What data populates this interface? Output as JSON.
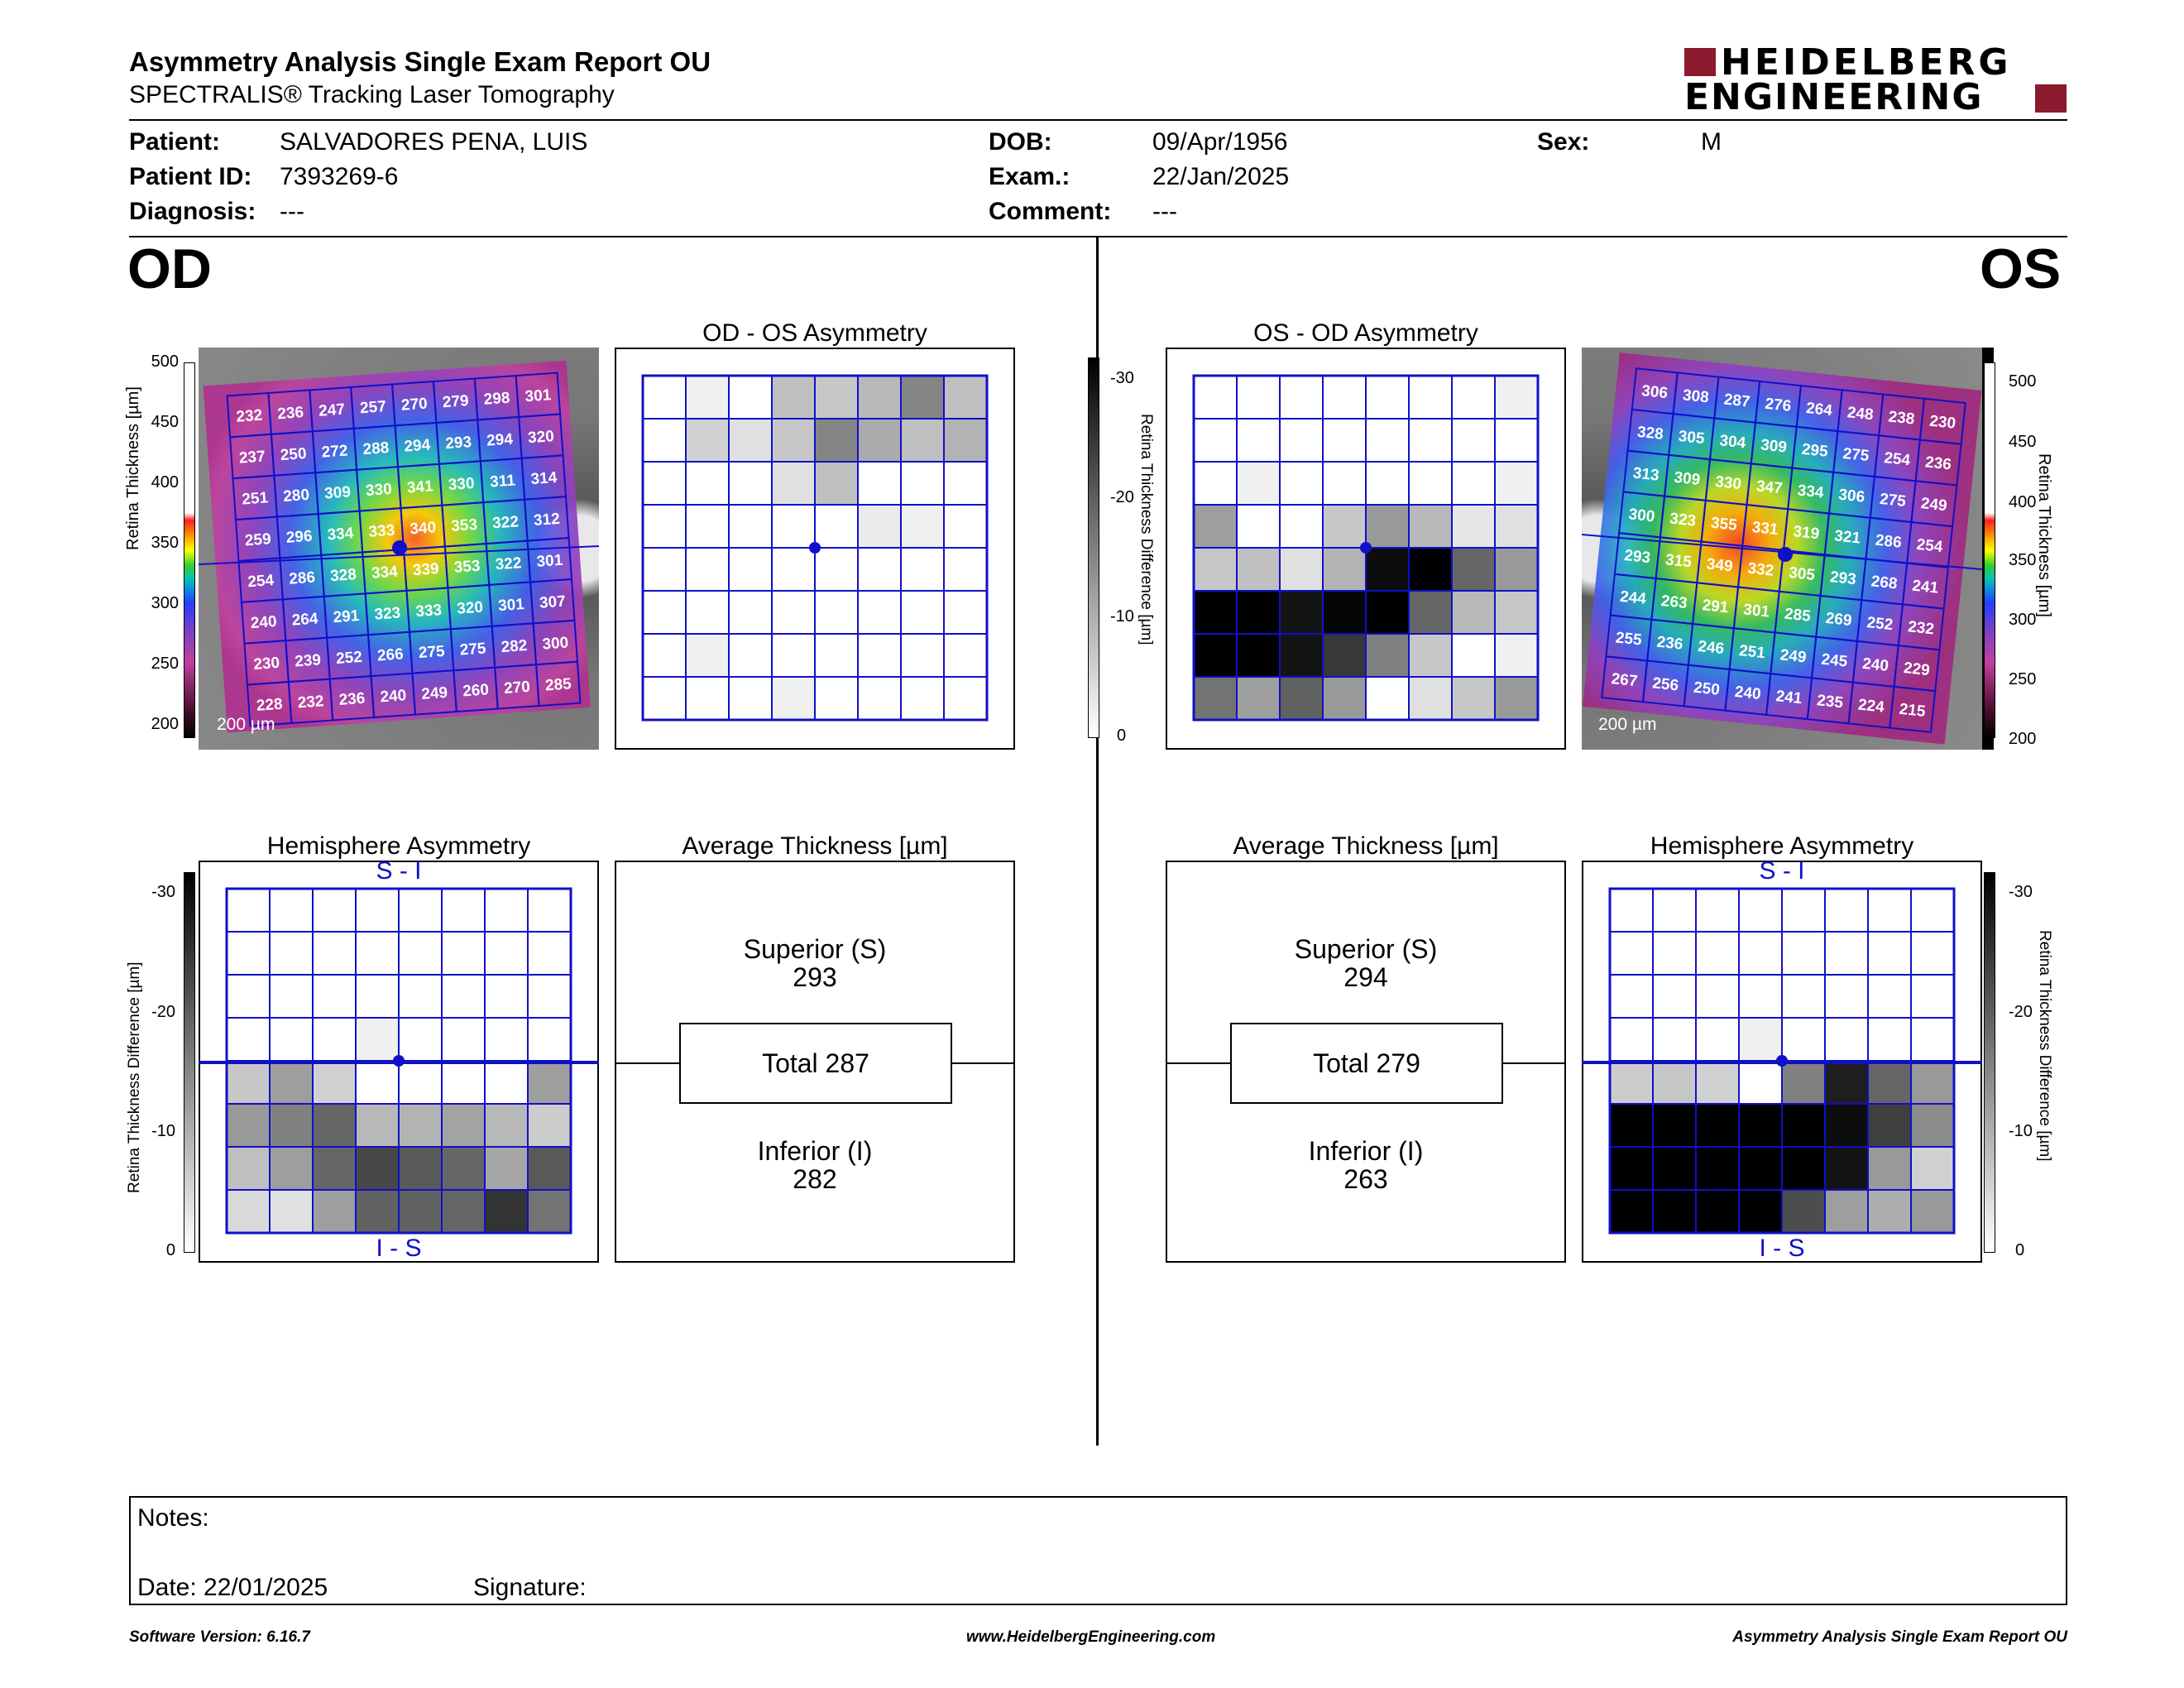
{
  "header": {
    "title": "Asymmetry Analysis Single Exam Report OU",
    "subtitle": "SPECTRALIS® Tracking Laser Tomography",
    "logo_line1": "HEIDELBERG",
    "logo_line2": "ENGINEERING"
  },
  "patient": {
    "patient_label": "Patient:",
    "patient_value": "SALVADORES PENA, LUIS",
    "id_label": "Patient ID:",
    "id_value": "7393269-6",
    "diagnosis_label": "Diagnosis:",
    "diagnosis_value": "---",
    "dob_label": "DOB:",
    "dob_value": "09/Apr/1956",
    "exam_label": "Exam.:",
    "exam_value": "22/Jan/2025",
    "comment_label": "Comment:",
    "comment_value": "---",
    "sex_label": "Sex:",
    "sex_value": "M"
  },
  "od": {
    "eye": "OD",
    "thickness_values": [
      [
        232,
        236,
        247,
        257,
        270,
        279,
        298,
        301
      ],
      [
        237,
        250,
        272,
        288,
        294,
        293,
        294,
        320
      ],
      [
        251,
        280,
        309,
        330,
        341,
        330,
        311,
        314
      ],
      [
        259,
        296,
        334,
        333,
        340,
        353,
        322,
        312
      ],
      [
        254,
        286,
        328,
        334,
        339,
        353,
        322,
        301
      ],
      [
        240,
        264,
        291,
        323,
        333,
        320,
        301,
        307
      ],
      [
        230,
        239,
        252,
        266,
        275,
        275,
        282,
        300
      ],
      [
        228,
        232,
        236,
        240,
        249,
        260,
        270,
        285
      ]
    ],
    "scale_bar": "200 µm",
    "thickness_axis_label": "Retina Thickness [µm]",
    "thickness_ticks": [
      "500",
      "450",
      "400",
      "350",
      "300",
      "250",
      "200"
    ],
    "asym_title": "OD - OS Asymmetry",
    "asym_grays": [
      [
        0,
        6,
        0,
        25,
        22,
        28,
        48,
        25
      ],
      [
        0,
        18,
        12,
        22,
        48,
        33,
        25,
        30
      ],
      [
        0,
        0,
        0,
        12,
        25,
        0,
        0,
        0
      ],
      [
        0,
        0,
        0,
        0,
        0,
        8,
        6,
        0
      ],
      [
        0,
        0,
        0,
        0,
        0,
        0,
        0,
        0
      ],
      [
        0,
        0,
        0,
        0,
        0,
        0,
        0,
        0
      ],
      [
        0,
        6,
        0,
        0,
        0,
        0,
        0,
        0
      ],
      [
        0,
        0,
        0,
        6,
        0,
        0,
        0,
        0
      ]
    ],
    "hemi_title": "Hemisphere Asymmetry",
    "hemi_top": "S - I",
    "hemi_bottom": "I - S",
    "hemi_grays": [
      [
        0,
        0,
        0,
        0,
        0,
        0,
        0,
        0
      ],
      [
        0,
        0,
        0,
        0,
        0,
        0,
        0,
        0
      ],
      [
        0,
        0,
        0,
        0,
        0,
        0,
        0,
        0
      ],
      [
        0,
        0,
        0,
        6,
        0,
        0,
        0,
        0
      ],
      [
        22,
        38,
        18,
        0,
        0,
        0,
        0,
        38
      ],
      [
        40,
        50,
        60,
        28,
        30,
        36,
        28,
        20
      ],
      [
        25,
        38,
        60,
        72,
        65,
        60,
        35,
        65
      ],
      [
        15,
        12,
        38,
        62,
        62,
        60,
        80,
        55
      ]
    ],
    "diff_axis_label": "Retina Thickness Difference [µm]",
    "diff_ticks": [
      "-30",
      "-20",
      "-10",
      "0"
    ],
    "avg_title": "Average Thickness [µm]",
    "superior_label": "Superior (S)",
    "superior_value": "293",
    "total": "Total 287",
    "inferior_label": "Inferior (I)",
    "inferior_value": "282"
  },
  "os": {
    "eye": "OS",
    "thickness_values": [
      [
        306,
        308,
        287,
        276,
        264,
        248,
        238,
        230
      ],
      [
        328,
        305,
        304,
        309,
        295,
        275,
        254,
        236
      ],
      [
        313,
        309,
        330,
        347,
        334,
        306,
        275,
        249
      ],
      [
        300,
        323,
        355,
        331,
        319,
        321,
        286,
        254
      ],
      [
        293,
        315,
        349,
        332,
        305,
        293,
        268,
        241
      ],
      [
        244,
        263,
        291,
        301,
        285,
        269,
        252,
        232
      ],
      [
        255,
        236,
        246,
        251,
        249,
        245,
        240,
        229
      ],
      [
        267,
        256,
        250,
        240,
        241,
        235,
        224,
        215
      ]
    ],
    "scale_bar": "200 µm",
    "thickness_axis_label": "Retina Thickness [µm]",
    "thickness_ticks": [
      "500",
      "450",
      "400",
      "350",
      "300",
      "250",
      "200"
    ],
    "asym_title": "OS - OD Asymmetry",
    "asym_grays": [
      [
        0,
        0,
        0,
        0,
        0,
        0,
        0,
        6
      ],
      [
        0,
        0,
        0,
        0,
        0,
        0,
        0,
        0
      ],
      [
        0,
        6,
        0,
        0,
        0,
        0,
        0,
        6
      ],
      [
        38,
        0,
        0,
        22,
        40,
        28,
        10,
        12
      ],
      [
        22,
        25,
        12,
        30,
        95,
        100,
        60,
        40
      ],
      [
        100,
        100,
        92,
        98,
        100,
        60,
        28,
        22
      ],
      [
        100,
        100,
        92,
        78,
        50,
        22,
        0,
        6
      ],
      [
        55,
        38,
        62,
        40,
        0,
        12,
        22,
        40
      ]
    ],
    "hemi_title": "Hemisphere Asymmetry",
    "hemi_top": "S - I",
    "hemi_bottom": "I - S",
    "hemi_grays": [
      [
        0,
        0,
        0,
        0,
        0,
        0,
        0,
        0
      ],
      [
        0,
        0,
        0,
        0,
        0,
        0,
        0,
        0
      ],
      [
        0,
        0,
        0,
        0,
        0,
        0,
        0,
        0
      ],
      [
        0,
        0,
        0,
        6,
        0,
        0,
        0,
        0
      ],
      [
        20,
        22,
        18,
        0,
        50,
        88,
        60,
        40
      ],
      [
        100,
        100,
        100,
        100,
        100,
        95,
        75,
        45
      ],
      [
        100,
        100,
        100,
        100,
        100,
        92,
        40,
        18
      ],
      [
        100,
        100,
        100,
        100,
        70,
        38,
        32,
        40
      ]
    ],
    "diff_axis_label": "Retina Thickness Difference [µm]",
    "diff_ticks": [
      "-30",
      "-20",
      "-10",
      "0"
    ],
    "avg_title": "Average Thickness [µm]",
    "superior_label": "Superior (S)",
    "superior_value": "294",
    "total": "Total 279",
    "inferior_label": "Inferior (I)",
    "inferior_value": "263"
  },
  "notes": {
    "notes_label": "Notes:",
    "date_label": "Date: 22/01/2025",
    "signature_label": "Signature:"
  },
  "footer": {
    "software": "Software Version: 6.16.7",
    "website": "www.HeidelbergEngineering.com",
    "report": "Asymmetry Analysis Single Exam Report OU"
  },
  "colors": {
    "grid_blue": "#1010c8",
    "logo_red": "#8b1a2e"
  }
}
